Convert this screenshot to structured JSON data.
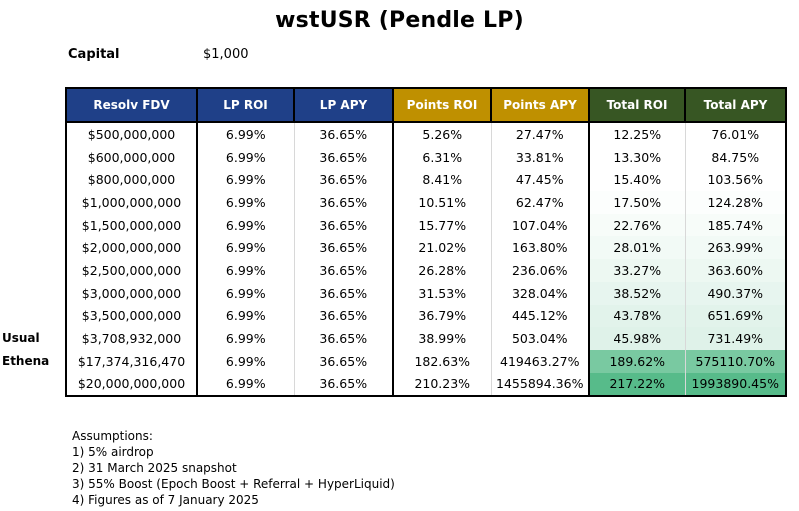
{
  "title": "wstUSR (Pendle LP)",
  "capital": {
    "label": "Capital",
    "value": "$1,000"
  },
  "columns": [
    "Resolv FDV",
    "LP ROI",
    "LP APY",
    "Points ROI",
    "Points APY",
    "Total ROI",
    "Total APY"
  ],
  "side_labels": [
    {
      "row": 9,
      "text": "Usual"
    },
    {
      "row": 10,
      "text": "Ethena"
    }
  ],
  "rows": [
    {
      "fdv": "$500,000,000",
      "lp_roi": "6.99%",
      "lp_apy": "36.65%",
      "points_roi": "5.26%",
      "points_apy": "27.47%",
      "total_roi": "12.25%",
      "total_apy": "76.01%",
      "shade": 0.0
    },
    {
      "fdv": "$600,000,000",
      "lp_roi": "6.99%",
      "lp_apy": "36.65%",
      "points_roi": "6.31%",
      "points_apy": "33.81%",
      "total_roi": "13.30%",
      "total_apy": "84.75%",
      "shade": 0.0
    },
    {
      "fdv": "$800,000,000",
      "lp_roi": "6.99%",
      "lp_apy": "36.65%",
      "points_roi": "8.41%",
      "points_apy": "47.45%",
      "total_roi": "15.40%",
      "total_apy": "103.56%",
      "shade": 0.0
    },
    {
      "fdv": "$1,000,000,000",
      "lp_roi": "6.99%",
      "lp_apy": "36.65%",
      "points_roi": "10.51%",
      "points_apy": "62.47%",
      "total_roi": "17.50%",
      "total_apy": "124.28%",
      "shade": 0.02
    },
    {
      "fdv": "$1,500,000,000",
      "lp_roi": "6.99%",
      "lp_apy": "36.65%",
      "points_roi": "15.77%",
      "points_apy": "107.04%",
      "total_roi": "22.76%",
      "total_apy": "185.74%",
      "shade": 0.05
    },
    {
      "fdv": "$2,000,000,000",
      "lp_roi": "6.99%",
      "lp_apy": "36.65%",
      "points_roi": "21.02%",
      "points_apy": "163.80%",
      "total_roi": "28.01%",
      "total_apy": "263.99%",
      "shade": 0.08
    },
    {
      "fdv": "$2,500,000,000",
      "lp_roi": "6.99%",
      "lp_apy": "36.65%",
      "points_roi": "26.28%",
      "points_apy": "236.06%",
      "total_roi": "33.27%",
      "total_apy": "363.60%",
      "shade": 0.11
    },
    {
      "fdv": "$3,000,000,000",
      "lp_roi": "6.99%",
      "lp_apy": "36.65%",
      "points_roi": "31.53%",
      "points_apy": "328.04%",
      "total_roi": "38.52%",
      "total_apy": "490.37%",
      "shade": 0.14
    },
    {
      "fdv": "$3,500,000,000",
      "lp_roi": "6.99%",
      "lp_apy": "36.65%",
      "points_roi": "36.79%",
      "points_apy": "445.12%",
      "total_roi": "43.78%",
      "total_apy": "651.69%",
      "shade": 0.17
    },
    {
      "fdv": "$3,708,932,000",
      "lp_roi": "6.99%",
      "lp_apy": "36.65%",
      "points_roi": "38.99%",
      "points_apy": "503.04%",
      "total_roi": "45.98%",
      "total_apy": "731.49%",
      "shade": 0.19
    },
    {
      "fdv": "$17,374,316,470",
      "lp_roi": "6.99%",
      "lp_apy": "36.65%",
      "points_roi": "182.63%",
      "points_apy": "419463.27%",
      "total_roi": "189.62%",
      "total_apy": "575110.70%",
      "shade": 0.8
    },
    {
      "fdv": "$20,000,000,000",
      "lp_roi": "6.99%",
      "lp_apy": "36.65%",
      "points_roi": "210.23%",
      "points_apy": "1455894.36%",
      "total_roi": "217.22%",
      "total_apy": "1993890.45%",
      "shade": 1.0
    }
  ],
  "assumptions": {
    "heading": "Assumptions:",
    "items": [
      "1) 5% airdrop",
      "2) 31 March 2025 snapshot",
      "3) 55% Boost (Epoch Boost + Referral + HyperLiquid)",
      "4) Figures as of 7 January 2025"
    ]
  },
  "colors": {
    "blue_header": "#1f4088",
    "gold_header": "#bf9000",
    "green_header": "#375623",
    "scale_low": "#ffffff",
    "scale_high": "#57bb8a"
  }
}
